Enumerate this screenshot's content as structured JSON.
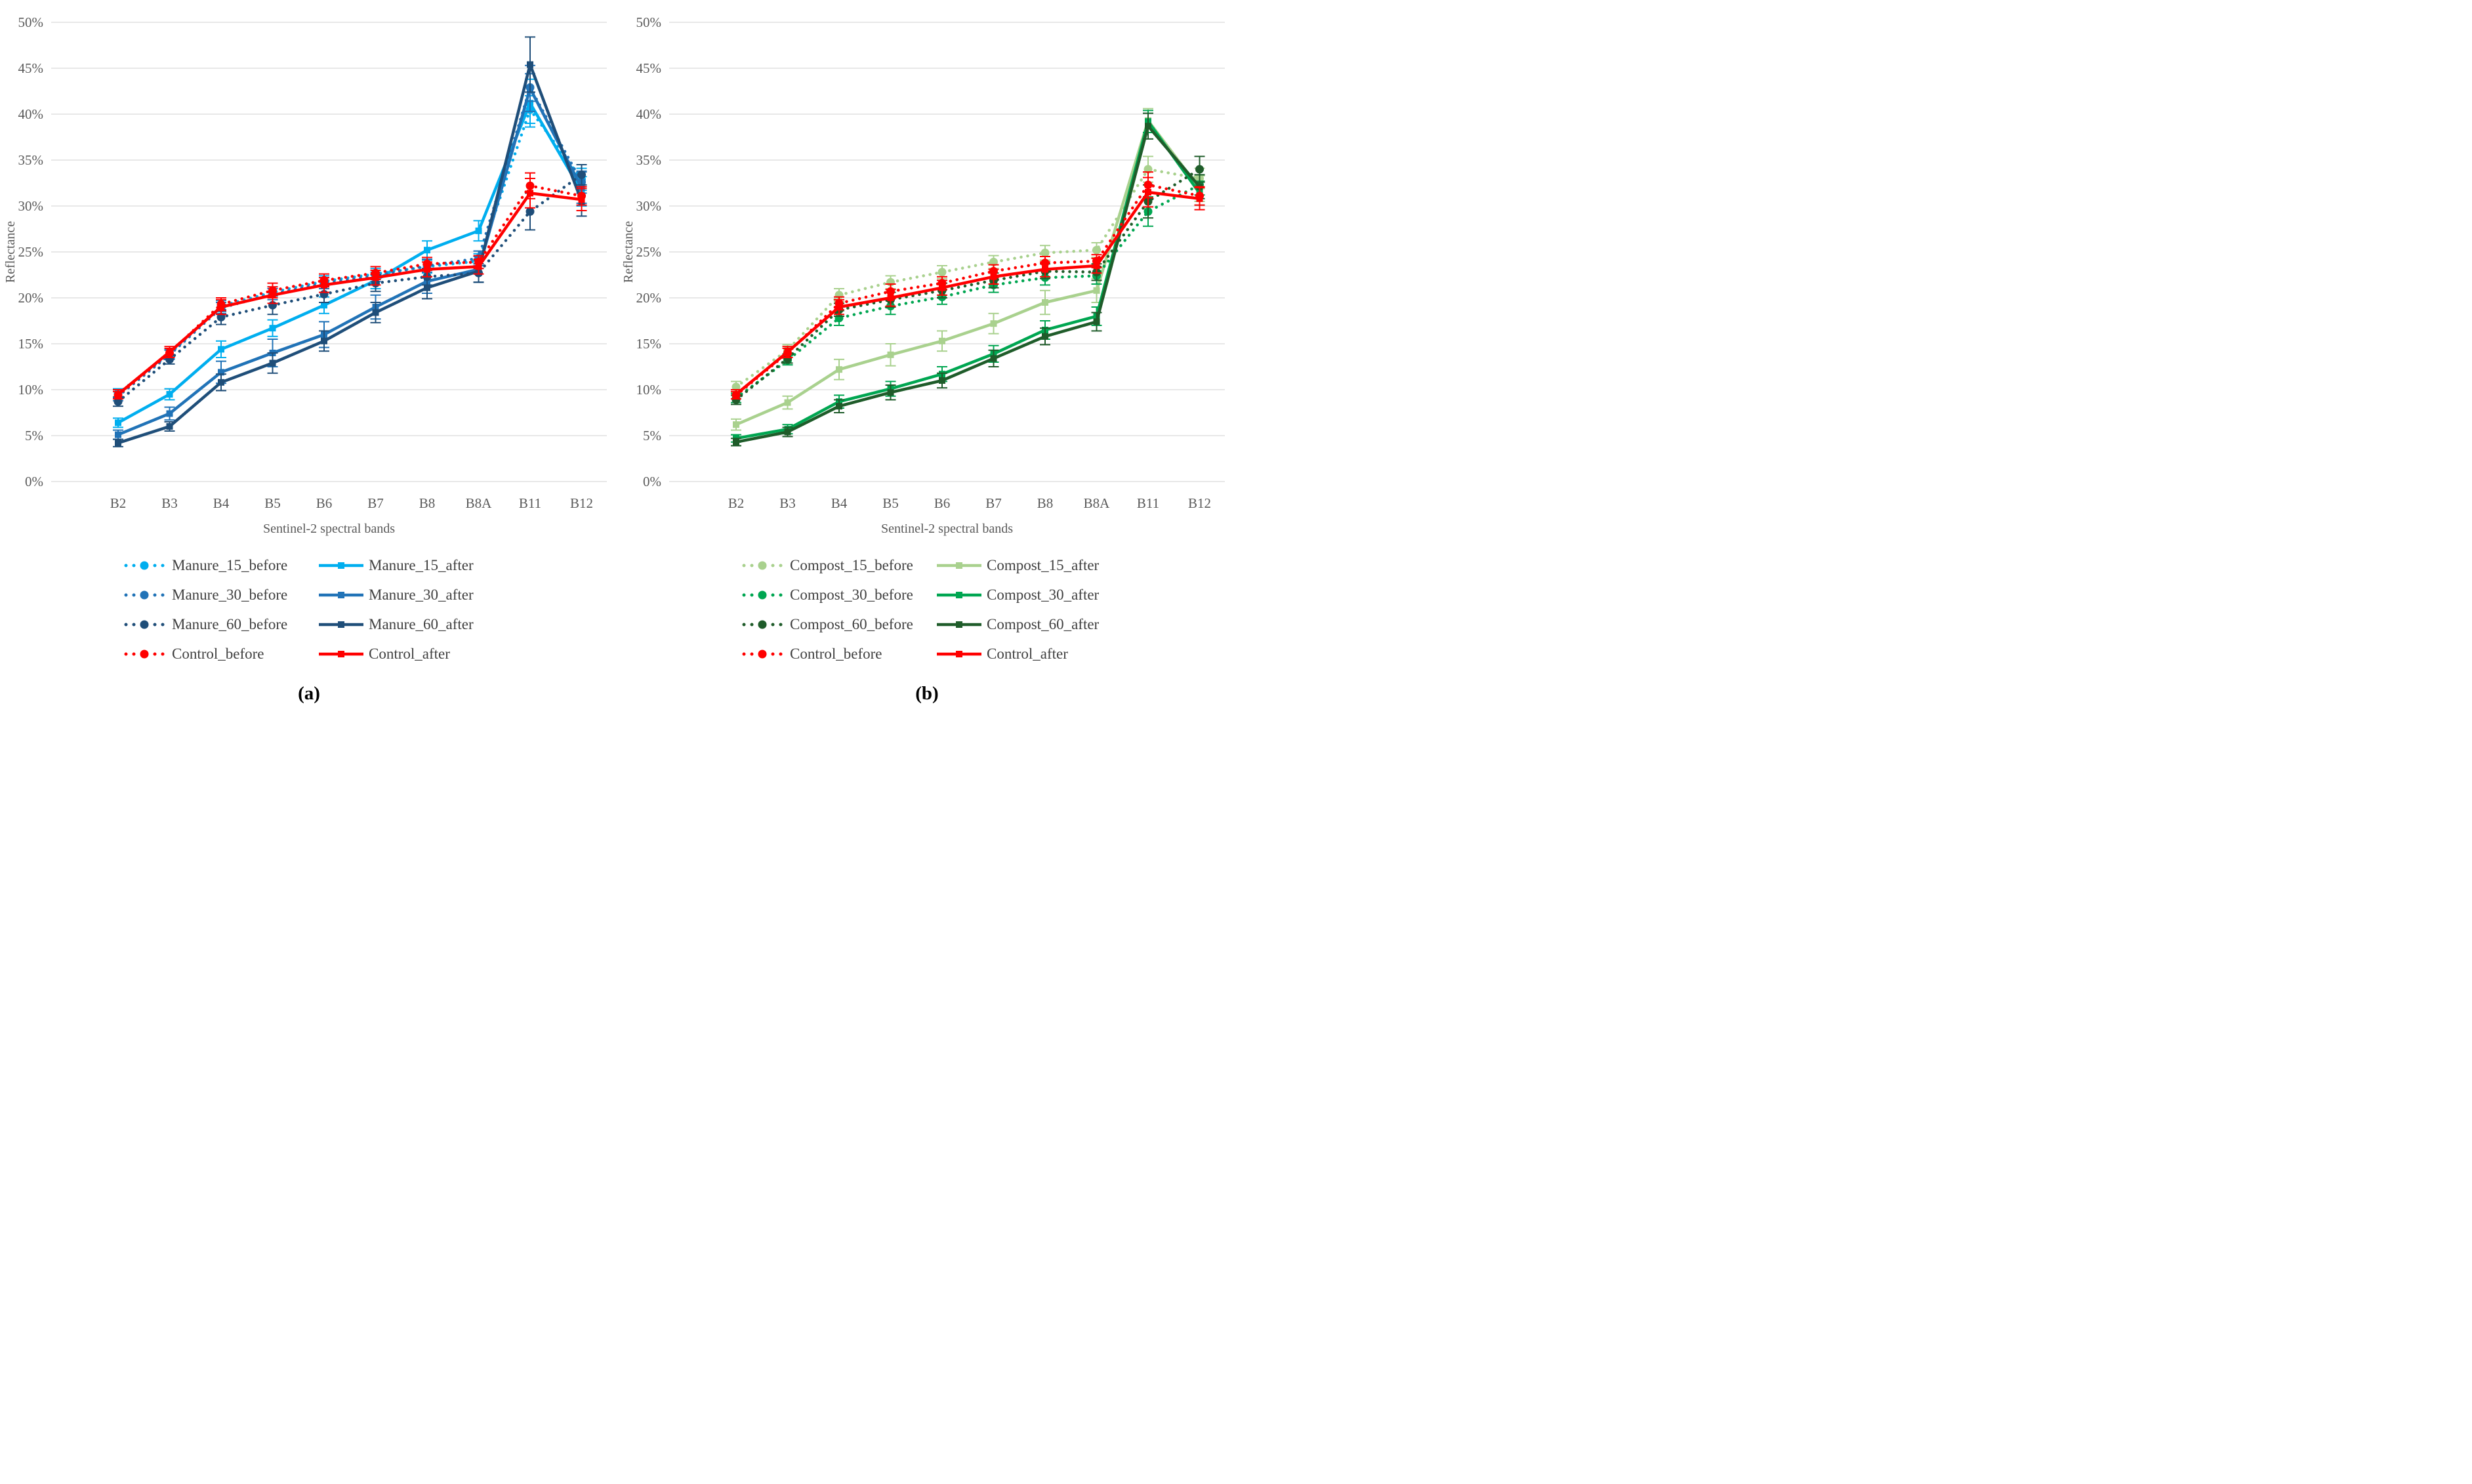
{
  "figure": {
    "caption_a": "(a)",
    "caption_b": "(b)",
    "colors": {
      "grid": "#D9D9D9",
      "axis_text": "#595959",
      "cyan": "#00AEEF",
      "blue": "#2173B7",
      "navy": "#1F4E79",
      "red": "#FF0000",
      "light_green": "#A9D18E",
      "green": "#00A651",
      "dark_green": "#1F5C2A"
    }
  },
  "chart_data": [
    {
      "type": "line",
      "panel_label": "(a)",
      "xlabel": "Sentinel-2 spectral bands",
      "ylabel": "Reflectance",
      "ylim": [
        0,
        50
      ],
      "y_tick_step": 5,
      "y_tick_suffix": "%",
      "grid": true,
      "legend_position": "bottom",
      "categories": [
        "B2",
        "B3",
        "B4",
        "B5",
        "B6",
        "B7",
        "B8",
        "B8A",
        "B11",
        "B12"
      ],
      "series": [
        {
          "name": "Manure_15_before",
          "color": "#00AEEF",
          "line_style": "dotted",
          "marker": "circle",
          "values": [
            9.6,
            13.9,
            19.1,
            20.6,
            21.8,
            22.6,
            23.4,
            24.0,
            40.5,
            32.9
          ],
          "error": [
            0.5,
            0.5,
            0.6,
            0.6,
            0.6,
            0.6,
            0.7,
            0.8,
            1.5,
            1.2
          ]
        },
        {
          "name": "Manure_15_after",
          "color": "#00AEEF",
          "line_style": "solid",
          "marker": "square",
          "values": [
            6.4,
            9.5,
            14.4,
            16.7,
            19.2,
            21.9,
            25.2,
            27.3,
            41.2,
            31.6
          ],
          "error": [
            0.5,
            0.6,
            0.9,
            0.9,
            0.9,
            0.9,
            1.0,
            1.1,
            2.6,
            1.6
          ]
        },
        {
          "name": "Manure_30_before",
          "color": "#2173B7",
          "line_style": "dotted",
          "marker": "circle",
          "values": [
            9.3,
            13.8,
            18.9,
            20.4,
            21.6,
            22.4,
            23.5,
            24.3,
            42.9,
            32.6
          ],
          "error": [
            0.5,
            0.5,
            0.6,
            0.6,
            0.6,
            0.6,
            0.7,
            0.8,
            1.5,
            1.2
          ]
        },
        {
          "name": "Manure_30_after",
          "color": "#2173B7",
          "line_style": "solid",
          "marker": "square",
          "values": [
            5.1,
            7.4,
            11.9,
            14.0,
            16.0,
            19.0,
            21.8,
            23.1,
            42.8,
            32.0
          ],
          "error": [
            0.5,
            0.7,
            1.2,
            1.5,
            1.4,
            1.3,
            1.3,
            1.4,
            2.5,
            1.7
          ]
        },
        {
          "name": "Manure_60_before",
          "color": "#1F4E79",
          "line_style": "dotted",
          "marker": "circle",
          "values": [
            8.7,
            13.3,
            17.9,
            19.2,
            20.4,
            21.6,
            22.3,
            22.7,
            29.4,
            33.4
          ],
          "error": [
            0.5,
            0.5,
            0.8,
            1.0,
            0.9,
            0.9,
            0.9,
            1.0,
            2.0,
            1.1
          ]
        },
        {
          "name": "Manure_60_after",
          "color": "#1F4E79",
          "line_style": "solid",
          "marker": "square",
          "values": [
            4.2,
            6.0,
            10.8,
            12.9,
            15.3,
            18.4,
            21.1,
            22.9,
            45.4,
            30.5
          ],
          "error": [
            0.4,
            0.5,
            0.9,
            1.1,
            1.1,
            1.1,
            1.2,
            1.2,
            3.0,
            1.6
          ]
        },
        {
          "name": "Control_before",
          "color": "#FF0000",
          "line_style": "dotted",
          "marker": "circle",
          "values": [
            9.4,
            14.0,
            19.3,
            20.8,
            21.9,
            22.7,
            23.7,
            23.9,
            32.2,
            31.1
          ],
          "error": [
            0.4,
            0.5,
            0.7,
            0.8,
            0.7,
            0.7,
            0.7,
            0.7,
            1.4,
            1.0
          ]
        },
        {
          "name": "Control_after",
          "color": "#FF0000",
          "line_style": "solid",
          "marker": "square",
          "values": [
            9.5,
            14.1,
            19.0,
            20.3,
            21.4,
            22.2,
            23.1,
            23.4,
            31.4,
            30.7
          ],
          "error": [
            0.5,
            0.6,
            0.8,
            0.9,
            0.8,
            0.8,
            0.8,
            0.8,
            1.6,
            1.2
          ]
        }
      ]
    },
    {
      "type": "line",
      "panel_label": "(b)",
      "xlabel": "Sentinel-2 spectral bands",
      "ylabel": "Reflectance",
      "ylim": [
        0,
        50
      ],
      "y_tick_step": 5,
      "y_tick_suffix": "%",
      "grid": true,
      "legend_position": "bottom",
      "categories": [
        "B2",
        "B3",
        "B4",
        "B5",
        "B6",
        "B7",
        "B8",
        "B8A",
        "B11",
        "B12"
      ],
      "series": [
        {
          "name": "Compost_15_before",
          "color": "#A9D18E",
          "line_style": "dotted",
          "marker": "circle",
          "values": [
            10.3,
            14.3,
            20.3,
            21.7,
            22.8,
            23.9,
            24.9,
            25.2,
            34.0,
            33.0
          ],
          "error": [
            0.6,
            0.6,
            0.7,
            0.7,
            0.7,
            0.7,
            0.8,
            0.8,
            1.4,
            1.1
          ]
        },
        {
          "name": "Compost_15_after",
          "color": "#A9D18E",
          "line_style": "solid",
          "marker": "square",
          "values": [
            6.2,
            8.6,
            12.2,
            13.8,
            15.3,
            17.2,
            19.5,
            20.8,
            39.3,
            31.9
          ],
          "error": [
            0.6,
            0.7,
            1.1,
            1.2,
            1.1,
            1.1,
            1.3,
            1.3,
            1.3,
            1.4
          ]
        },
        {
          "name": "Compost_30_before",
          "color": "#00A651",
          "line_style": "dotted",
          "marker": "circle",
          "values": [
            9.1,
            13.2,
            17.8,
            19.1,
            20.1,
            21.4,
            22.2,
            22.4,
            29.4,
            32.3
          ],
          "error": [
            0.5,
            0.5,
            0.8,
            0.9,
            0.8,
            0.8,
            0.8,
            0.9,
            1.6,
            1.1
          ]
        },
        {
          "name": "Compost_30_after",
          "color": "#00A651",
          "line_style": "solid",
          "marker": "square",
          "values": [
            4.7,
            5.7,
            8.7,
            10.1,
            11.7,
            13.9,
            16.5,
            18.0,
            39.2,
            31.4
          ],
          "error": [
            0.4,
            0.5,
            0.7,
            0.8,
            0.8,
            0.9,
            1.0,
            1.0,
            1.2,
            1.3
          ]
        },
        {
          "name": "Compost_60_before",
          "color": "#1F5C2A",
          "line_style": "dotted",
          "marker": "circle",
          "values": [
            8.9,
            13.4,
            18.7,
            19.8,
            20.8,
            21.9,
            22.9,
            22.8,
            30.5,
            34.0
          ],
          "error": [
            0.5,
            0.5,
            0.7,
            0.8,
            0.8,
            0.8,
            0.8,
            0.9,
            1.8,
            1.4
          ]
        },
        {
          "name": "Compost_60_after",
          "color": "#1F5C2A",
          "line_style": "solid",
          "marker": "square",
          "values": [
            4.3,
            5.4,
            8.2,
            9.7,
            11.0,
            13.4,
            15.8,
            17.4,
            38.7,
            32.1
          ],
          "error": [
            0.4,
            0.5,
            0.7,
            0.8,
            0.8,
            0.9,
            0.9,
            1.0,
            1.4,
            1.3
          ]
        },
        {
          "name": "Control_before",
          "color": "#FF0000",
          "line_style": "dotted",
          "marker": "circle",
          "values": [
            9.4,
            14.0,
            19.4,
            20.7,
            21.6,
            22.9,
            23.8,
            24.0,
            32.3,
            31.1
          ],
          "error": [
            0.4,
            0.5,
            0.7,
            0.8,
            0.7,
            0.7,
            0.7,
            0.7,
            1.4,
            1.0
          ]
        },
        {
          "name": "Control_after",
          "color": "#FF0000",
          "line_style": "solid",
          "marker": "square",
          "values": [
            9.5,
            14.1,
            19.0,
            20.0,
            21.1,
            22.3,
            23.1,
            23.5,
            31.5,
            30.8
          ],
          "error": [
            0.5,
            0.6,
            0.8,
            0.9,
            0.8,
            0.8,
            0.8,
            0.8,
            1.6,
            1.2
          ]
        }
      ]
    }
  ]
}
